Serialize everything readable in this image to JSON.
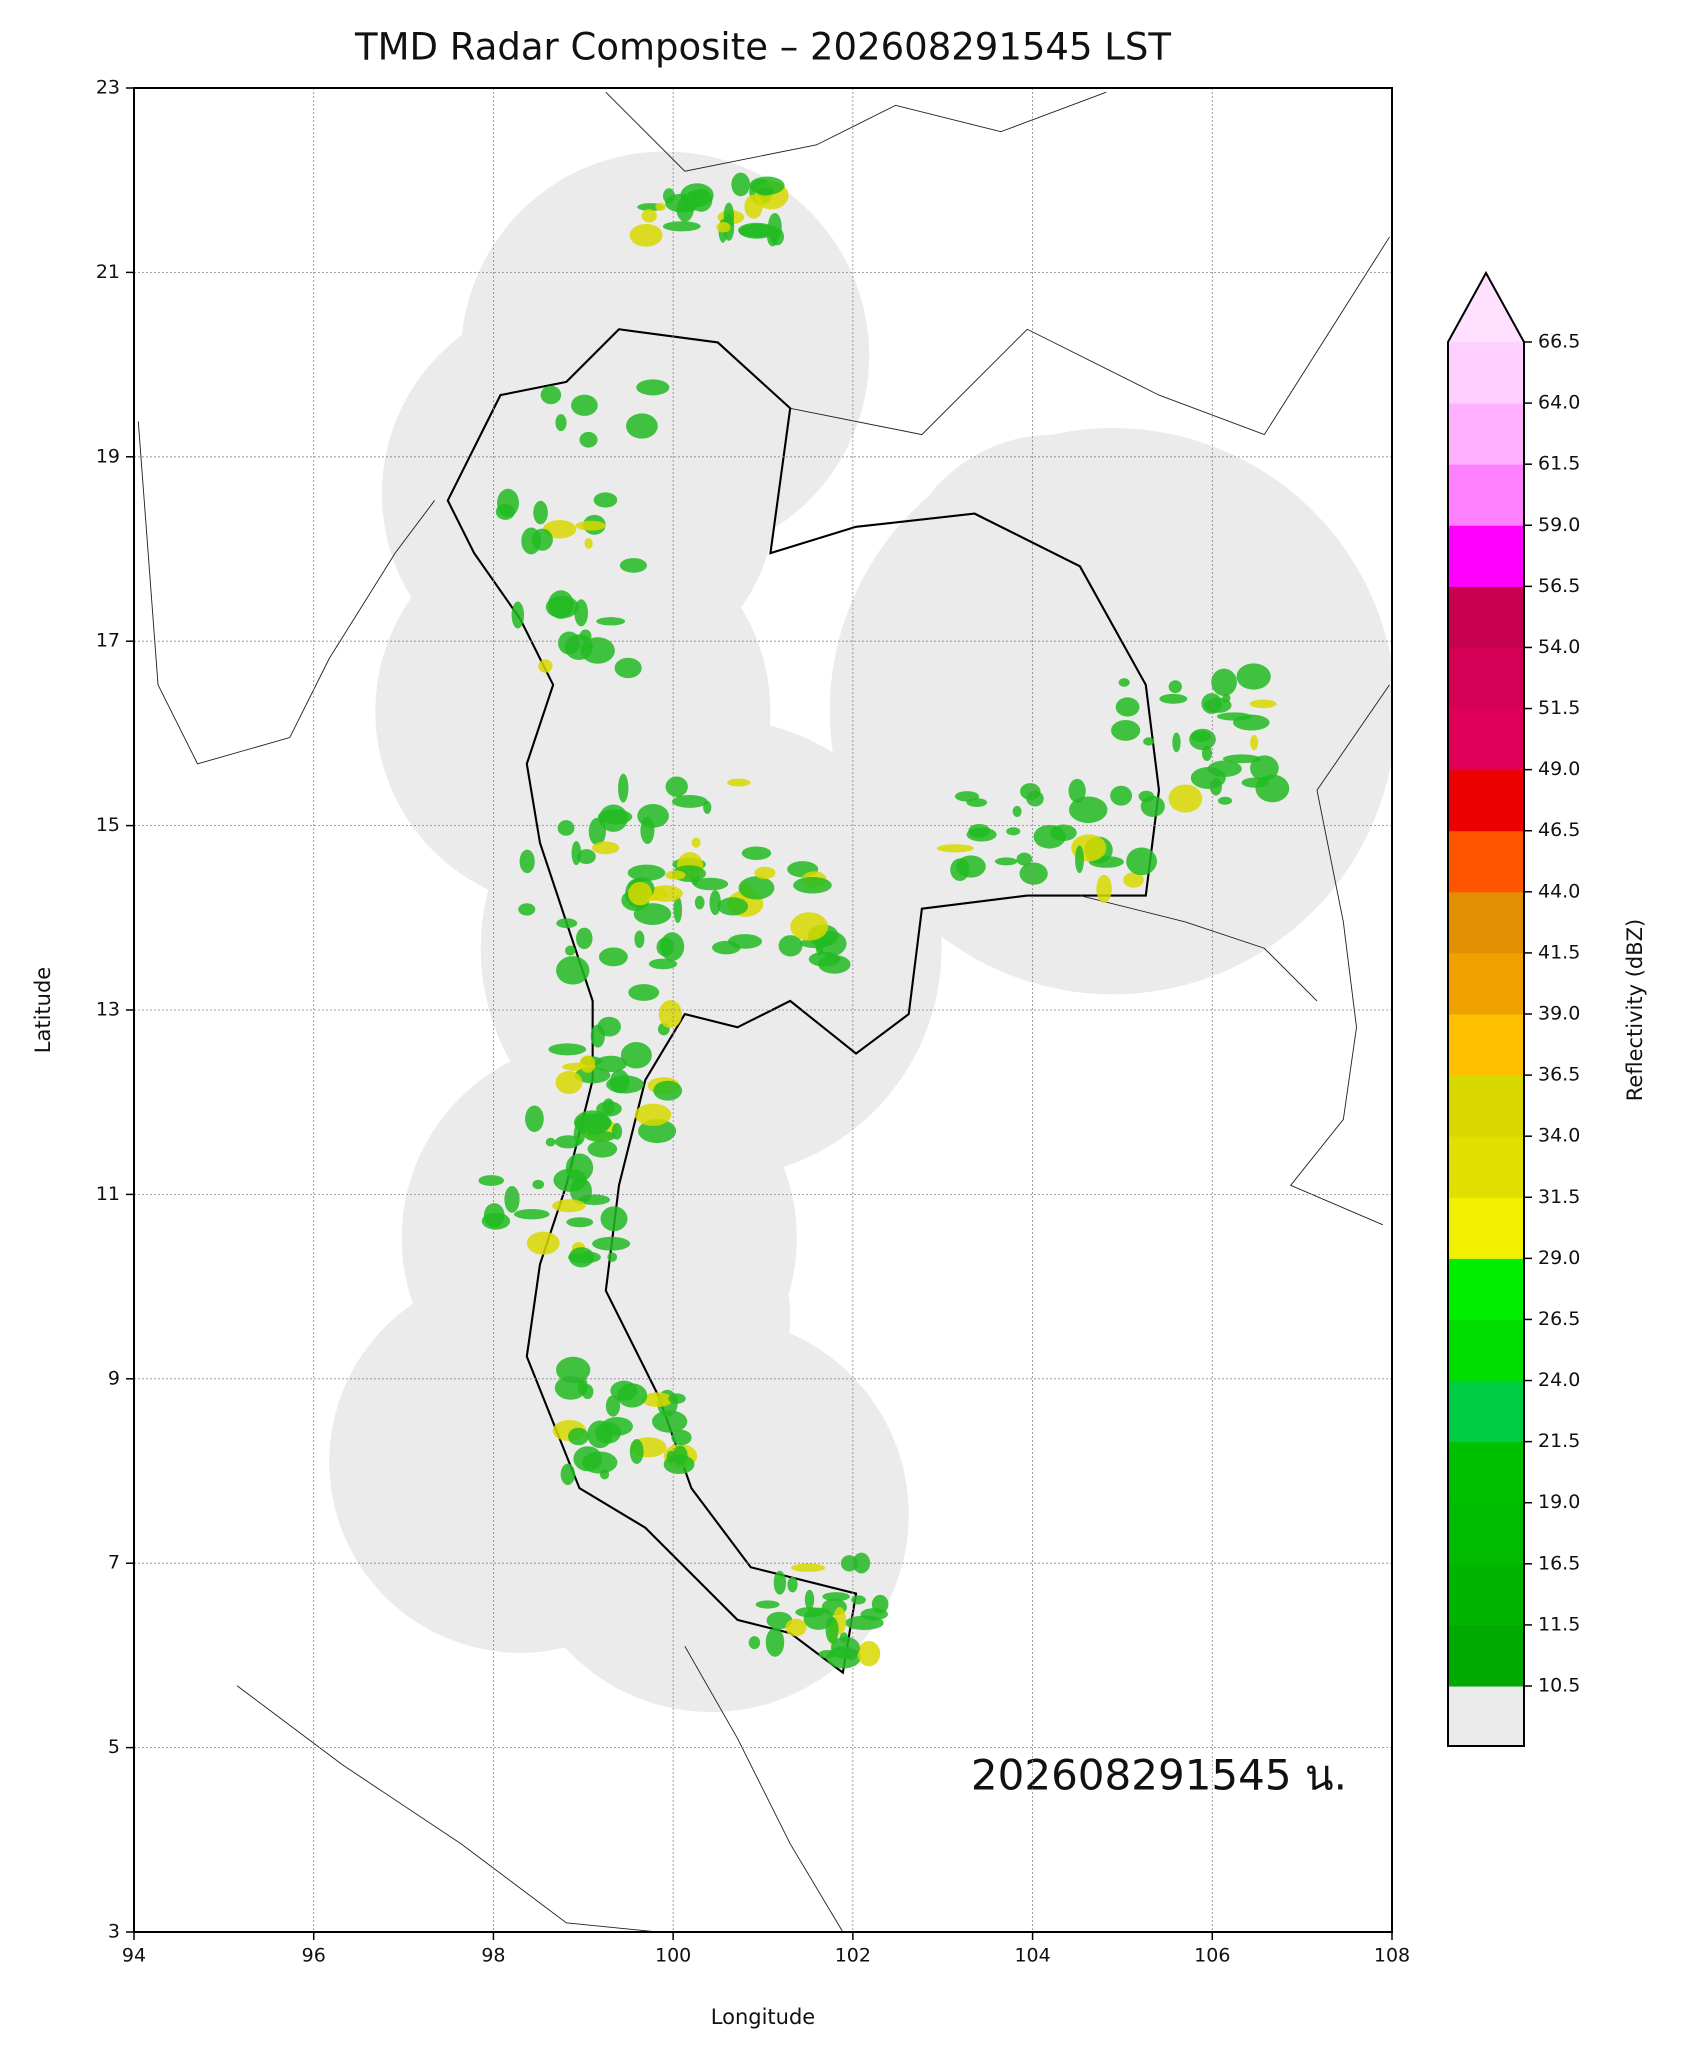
{
  "map": {
    "title": "TMD Radar Composite – 202608291545 LST",
    "xlabel": "Longitude",
    "ylabel": "Latitude",
    "xlim": [
      94,
      108
    ],
    "ylim": [
      3,
      23
    ],
    "xticks": [
      94,
      96,
      98,
      100,
      102,
      104,
      106,
      108
    ],
    "yticks": [
      3,
      5,
      7,
      9,
      11,
      13,
      15,
      17,
      19,
      21,
      23
    ],
    "grid": true,
    "annotation": "202608291545 น.",
    "colorbar": {
      "label": "Reflectivity (dBZ)",
      "levels": [
        10.5,
        11.5,
        16.5,
        19.0,
        21.5,
        24.0,
        26.5,
        29.0,
        31.5,
        34.0,
        36.5,
        39.0,
        41.5,
        44.0,
        46.5,
        49.0,
        51.5,
        54.0,
        56.5,
        59.0,
        61.5,
        64.0,
        66.5
      ],
      "colors": [
        "#00aa00",
        "#00b400",
        "#00bb00",
        "#00c000",
        "#00cc44",
        "#00dd00",
        "#00ee00",
        "#f0f000",
        "#e0e000",
        "#d8d800",
        "#ffc000",
        "#f0a000",
        "#e09000",
        "#ff5500",
        "#ee0000",
        "#e0005a",
        "#d50055",
        "#c80050",
        "#ff00ff",
        "#ff80ff",
        "#ffb0ff",
        "#ffd0ff"
      ],
      "under_color": "#ebebeb",
      "over_color": "#ffe0ff"
    }
  }
}
